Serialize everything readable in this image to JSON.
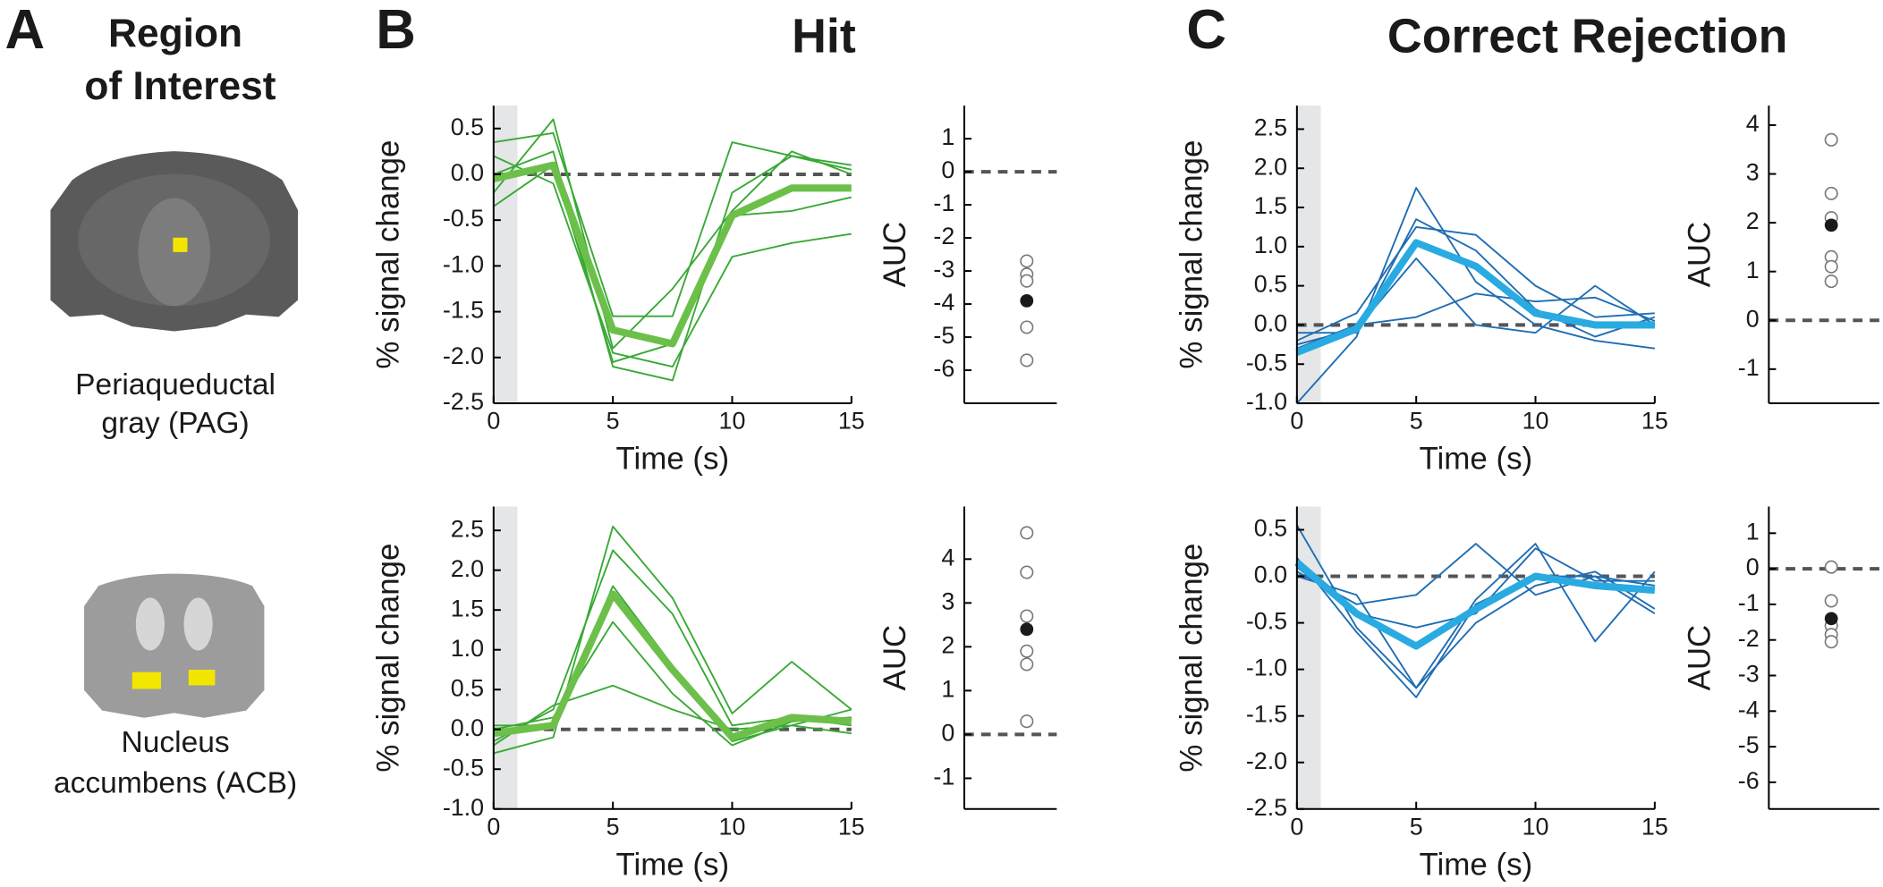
{
  "figure": {
    "panel_labels": [
      "A",
      "B",
      "C"
    ],
    "roi_title": [
      "Region",
      "of Interest"
    ],
    "rois": [
      [
        "Periaqueductal",
        "gray (PAG)"
      ],
      [
        "Nucleus",
        "accumbens (ACB)"
      ]
    ],
    "condition_titles": [
      "Hit",
      "Correct Rejection"
    ]
  },
  "chart_data": [
    {
      "type": "line",
      "xlabel": "Time (s)",
      "ylabel": "% signal change",
      "x": [
        0,
        2.5,
        5,
        7.5,
        10,
        12.5,
        15
      ],
      "xlim": [
        0,
        15
      ],
      "xticks": [
        0,
        5,
        10,
        15
      ],
      "ylim": [
        -2.5,
        0.75
      ],
      "yticks": [
        0.5,
        {
          "value": 0,
          "label": "0.0"
        },
        -0.5,
        {
          "value": -1,
          "label": "-1.0"
        },
        -1.5,
        {
          "value": -2,
          "label": "-2.0"
        },
        -2.5
      ],
      "shade": [
        0,
        1
      ],
      "zero_line": true,
      "series": [
        {
          "color": "#39a935",
          "values": [
            0.35,
            0.45,
            -1.55,
            -1.55,
            0.35,
            0.2,
            0.1
          ]
        },
        {
          "color": "#39a935",
          "values": [
            0.2,
            -0.1,
            -1.95,
            -2.1,
            -0.9,
            -0.75,
            -0.65
          ]
        },
        {
          "color": "#39a935",
          "values": [
            -0.2,
            0.6,
            -1.9,
            -1.25,
            -0.4,
            0.25,
            0.0
          ]
        },
        {
          "color": "#39a935",
          "values": [
            -0.35,
            0.1,
            -2.05,
            -1.85,
            -0.45,
            -0.4,
            -0.25
          ]
        },
        {
          "color": "#39a935",
          "values": [
            0.0,
            0.25,
            -2.1,
            -2.25,
            -0.2,
            0.2,
            0.05
          ]
        }
      ],
      "mean": {
        "color": "#6cc04a",
        "values": [
          -0.05,
          0.1,
          -1.7,
          -1.85,
          -0.45,
          -0.15,
          -0.15
        ]
      }
    },
    {
      "type": "strip",
      "ylabel": "AUC",
      "ylim": [
        -7,
        2
      ],
      "yticks": [
        1,
        0,
        -1,
        -2,
        -3,
        -4,
        -5,
        -6
      ],
      "zero_line": true,
      "values": [
        -2.7,
        -3.1,
        -3.3,
        -4.7,
        -5.7
      ],
      "mean": -3.9
    },
    {
      "type": "line",
      "xlabel": "Time (s)",
      "ylabel": "% signal change",
      "x": [
        0,
        2.5,
        5,
        7.5,
        10,
        12.5,
        15
      ],
      "xlim": [
        0,
        15
      ],
      "xticks": [
        0,
        5,
        10,
        15
      ],
      "ylim": [
        -1,
        2.8
      ],
      "yticks": [
        2.5,
        {
          "value": 2,
          "label": "2.0"
        },
        1.5,
        {
          "value": 1,
          "label": "1.0"
        },
        0.5,
        {
          "value": 0,
          "label": "0.0"
        },
        -0.5,
        {
          "value": -1,
          "label": "-1.0"
        }
      ],
      "shade": [
        0,
        1
      ],
      "zero_line": true,
      "series": [
        {
          "color": "#39a935",
          "values": [
            -0.3,
            -0.1,
            2.55,
            1.65,
            0.2,
            0.85,
            0.25
          ]
        },
        {
          "color": "#39a935",
          "values": [
            -0.15,
            0.25,
            2.25,
            1.45,
            0.05,
            0.15,
            0.05
          ]
        },
        {
          "color": "#39a935",
          "values": [
            0.0,
            0.15,
            1.35,
            0.45,
            -0.2,
            0.1,
            0.15
          ]
        },
        {
          "color": "#39a935",
          "values": [
            -0.2,
            0.3,
            0.55,
            0.25,
            0.0,
            0.05,
            0.25
          ]
        },
        {
          "color": "#39a935",
          "values": [
            0.05,
            0.05,
            1.8,
            0.8,
            -0.15,
            0.05,
            -0.05
          ]
        }
      ],
      "mean": {
        "color": "#6cc04a",
        "values": [
          -0.05,
          0.05,
          1.7,
          0.75,
          -0.1,
          0.15,
          0.1
        ]
      }
    },
    {
      "type": "strip",
      "ylabel": "AUC",
      "ylim": [
        -1.7,
        5.2
      ],
      "yticks": [
        4,
        3,
        2,
        1,
        0,
        -1
      ],
      "zero_line": true,
      "values": [
        4.6,
        3.7,
        2.7,
        1.9,
        1.6,
        0.3
      ],
      "mean": 2.4
    },
    {
      "type": "line",
      "xlabel": "Time (s)",
      "ylabel": "% signal change",
      "x": [
        0,
        2.5,
        5,
        7.5,
        10,
        12.5,
        15
      ],
      "xlim": [
        0,
        15
      ],
      "xticks": [
        0,
        5,
        10,
        15
      ],
      "ylim": [
        -1,
        2.8
      ],
      "yticks": [
        2.5,
        {
          "value": 2,
          "label": "2.0"
        },
        1.5,
        {
          "value": 1,
          "label": "1.0"
        },
        0.5,
        {
          "value": 0,
          "label": "0.0"
        },
        -0.5,
        {
          "value": -1,
          "label": "-1.0"
        }
      ],
      "shade": [
        0,
        1
      ],
      "zero_line": true,
      "series": [
        {
          "color": "#1f6db3",
          "values": [
            -1.0,
            -0.15,
            1.75,
            0.55,
            0.0,
            -0.2,
            -0.3
          ]
        },
        {
          "color": "#1f6db3",
          "values": [
            -0.2,
            0.15,
            1.25,
            1.15,
            0.5,
            0.1,
            0.15
          ]
        },
        {
          "color": "#1f6db3",
          "values": [
            -0.25,
            -0.05,
            0.85,
            0.0,
            -0.1,
            0.5,
            0.0
          ]
        },
        {
          "color": "#1f6db3",
          "values": [
            -0.3,
            0.0,
            0.1,
            0.4,
            0.3,
            0.35,
            0.05
          ]
        },
        {
          "color": "#1f6db3",
          "values": [
            -0.1,
            -0.1,
            1.35,
            0.95,
            0.2,
            -0.15,
            0.1
          ]
        }
      ],
      "mean": {
        "color": "#29abe2",
        "values": [
          -0.35,
          -0.05,
          1.05,
          0.75,
          0.15,
          0.0,
          0.0
        ]
      }
    },
    {
      "type": "strip",
      "ylabel": "AUC",
      "ylim": [
        -1.7,
        4.4
      ],
      "yticks": [
        4,
        3,
        2,
        1,
        0,
        -1
      ],
      "zero_line": true,
      "values": [
        3.7,
        2.6,
        2.1,
        1.3,
        1.1,
        0.8
      ],
      "mean": 1.95
    },
    {
      "type": "line",
      "xlabel": "Time (s)",
      "ylabel": "% signal change",
      "x": [
        0,
        2.5,
        5,
        7.5,
        10,
        12.5,
        15
      ],
      "xlim": [
        0,
        15
      ],
      "xticks": [
        0,
        5,
        10,
        15
      ],
      "ylim": [
        -2.5,
        0.75
      ],
      "yticks": [
        0.5,
        {
          "value": 0,
          "label": "0.0"
        },
        -0.5,
        {
          "value": -1,
          "label": "-1.0"
        },
        -1.5,
        {
          "value": -2,
          "label": "-2.0"
        },
        -2.5
      ],
      "shade": [
        0,
        1
      ],
      "zero_line": true,
      "series": [
        {
          "color": "#1f6db3",
          "values": [
            0.55,
            -0.55,
            -1.2,
            -0.25,
            0.35,
            -0.7,
            0.05
          ]
        },
        {
          "color": "#1f6db3",
          "values": [
            0.2,
            -0.6,
            -1.3,
            -0.3,
            0.0,
            0.0,
            -0.4
          ]
        },
        {
          "color": "#1f6db3",
          "values": [
            0.05,
            -0.3,
            -0.2,
            0.35,
            -0.2,
            0.0,
            -0.1
          ]
        },
        {
          "color": "#1f6db3",
          "values": [
            0.1,
            -0.4,
            -0.55,
            -0.4,
            0.3,
            -0.05,
            -0.05
          ]
        },
        {
          "color": "#1f6db3",
          "values": [
            0.0,
            -0.2,
            -1.2,
            -0.5,
            -0.1,
            0.05,
            -0.35
          ]
        }
      ],
      "mean": {
        "color": "#29abe2",
        "values": [
          0.15,
          -0.4,
          -0.75,
          -0.35,
          0.0,
          -0.1,
          -0.15
        ]
      }
    },
    {
      "type": "strip",
      "ylabel": "AUC",
      "ylim": [
        -6.75,
        1.75
      ],
      "yticks": [
        1,
        0,
        -1,
        -2,
        -3,
        -4,
        -5,
        -6
      ],
      "zero_line": true,
      "values": [
        0.05,
        -0.9,
        -1.6,
        -1.85,
        -2.05
      ],
      "mean": -1.4
    }
  ]
}
